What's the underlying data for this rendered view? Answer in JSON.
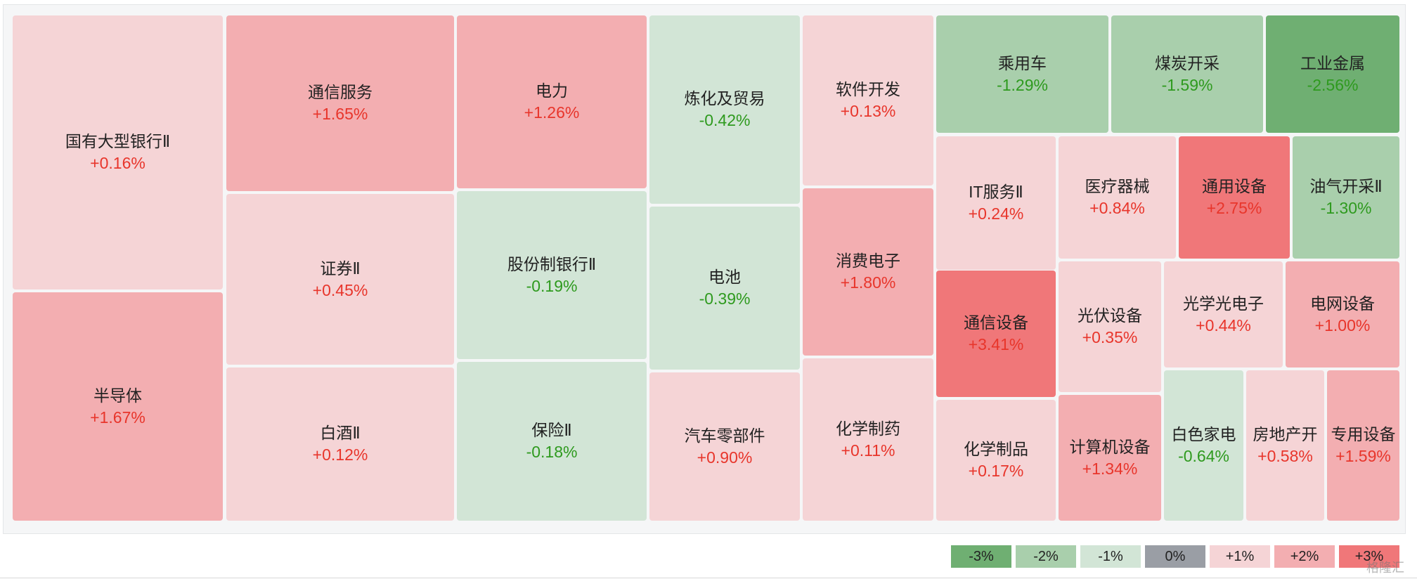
{
  "colors": {
    "-3": "#6faf72",
    "-2": "#a9cfac",
    "-1": "#d2e5d6",
    "0": "#9a9ea5",
    "1": "#f5d4d6",
    "2": "#f3aeb1",
    "3": "#f07779"
  },
  "chart_data": {
    "type": "treemap",
    "unit": "%",
    "items": [
      {
        "name": "国有大型银行Ⅱ",
        "change": 0.16,
        "label": "+0.16%"
      },
      {
        "name": "半导体",
        "change": 1.67,
        "label": "+1.67%"
      },
      {
        "name": "通信服务",
        "change": 1.65,
        "label": "+1.65%"
      },
      {
        "name": "证券Ⅱ",
        "change": 0.45,
        "label": "+0.45%"
      },
      {
        "name": "白酒Ⅱ",
        "change": 0.12,
        "label": "+0.12%"
      },
      {
        "name": "电力",
        "change": 1.26,
        "label": "+1.26%"
      },
      {
        "name": "股份制银行Ⅱ",
        "change": -0.19,
        "label": "-0.19%"
      },
      {
        "name": "保险Ⅱ",
        "change": -0.18,
        "label": "-0.18%"
      },
      {
        "name": "炼化及贸易",
        "change": -0.42,
        "label": "-0.42%"
      },
      {
        "name": "电池",
        "change": -0.39,
        "label": "-0.39%"
      },
      {
        "name": "汽车零部件",
        "change": 0.9,
        "label": "+0.90%"
      },
      {
        "name": "软件开发",
        "change": 0.13,
        "label": "+0.13%"
      },
      {
        "name": "消费电子",
        "change": 1.8,
        "label": "+1.80%"
      },
      {
        "name": "化学制药",
        "change": 0.11,
        "label": "+0.11%"
      },
      {
        "name": "乘用车",
        "change": -1.29,
        "label": "-1.29%"
      },
      {
        "name": "煤炭开采",
        "change": -1.59,
        "label": "-1.59%"
      },
      {
        "name": "工业金属",
        "change": -2.56,
        "label": "-2.56%"
      },
      {
        "name": "IT服务Ⅱ",
        "change": 0.24,
        "label": "+0.24%"
      },
      {
        "name": "医疗器械",
        "change": 0.84,
        "label": "+0.84%"
      },
      {
        "name": "通用设备",
        "change": 2.75,
        "label": "+2.75%"
      },
      {
        "name": "油气开采Ⅱ",
        "change": -1.3,
        "label": "-1.30%"
      },
      {
        "name": "通信设备",
        "change": 3.41,
        "label": "+3.41%"
      },
      {
        "name": "光伏设备",
        "change": 0.35,
        "label": "+0.35%"
      },
      {
        "name": "光学光电子",
        "change": 0.44,
        "label": "+0.44%"
      },
      {
        "name": "电网设备",
        "change": 1.0,
        "label": "+1.00%"
      },
      {
        "name": "化学制品",
        "change": 0.17,
        "label": "+0.17%"
      },
      {
        "name": "计算机设备",
        "change": 1.34,
        "label": "+1.34%"
      },
      {
        "name": "白色家电",
        "change": -0.64,
        "label": "-0.64%"
      },
      {
        "name": "房地产开",
        "change": 0.58,
        "label": "+0.58%"
      },
      {
        "name": "专用设备",
        "change": 1.59,
        "label": "+1.59%"
      }
    ],
    "legend": [
      {
        "label": "-3%",
        "color": "#6faf72"
      },
      {
        "label": "-2%",
        "color": "#a9cfac"
      },
      {
        "label": "-1%",
        "color": "#d2e5d6"
      },
      {
        "label": "0%",
        "color": "#9a9ea5"
      },
      {
        "label": "+1%",
        "color": "#f5d4d6"
      },
      {
        "label": "+2%",
        "color": "#f3aeb1"
      },
      {
        "label": "+3%",
        "color": "#f07779"
      }
    ]
  },
  "watermark": "格隆汇"
}
